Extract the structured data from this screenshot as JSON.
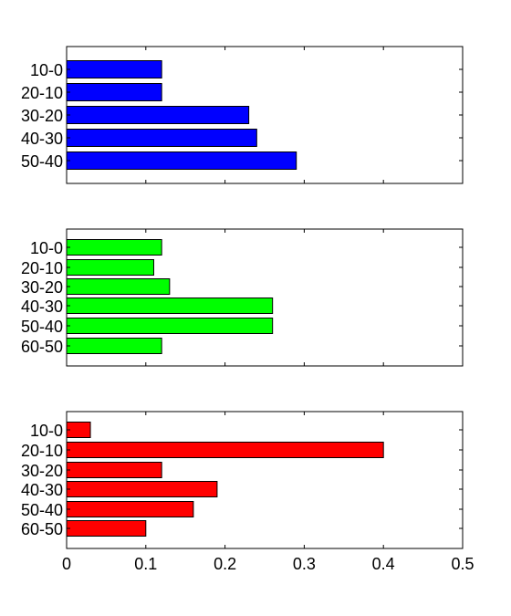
{
  "chart_data": [
    {
      "type": "bar",
      "orientation": "horizontal",
      "color": "#0000ff",
      "categories": [
        "10-0",
        "20-10",
        "30-20",
        "40-30",
        "50-40"
      ],
      "values": [
        0.12,
        0.12,
        0.23,
        0.24,
        0.29
      ],
      "xlim": [
        0,
        0.5
      ],
      "x_tick_labels_shown": false,
      "grid": false
    },
    {
      "type": "bar",
      "orientation": "horizontal",
      "color": "#00ff00",
      "categories": [
        "10-0",
        "20-10",
        "30-20",
        "40-30",
        "50-40",
        "60-50"
      ],
      "values": [
        0.12,
        0.11,
        0.13,
        0.26,
        0.26,
        0.12
      ],
      "xlim": [
        0,
        0.5
      ],
      "x_tick_labels_shown": false,
      "grid": false
    },
    {
      "type": "bar",
      "orientation": "horizontal",
      "color": "#ff0000",
      "categories": [
        "10-0",
        "20-10",
        "30-20",
        "40-30",
        "50-40",
        "60-50"
      ],
      "values": [
        0.03,
        0.4,
        0.12,
        0.19,
        0.16,
        0.1
      ],
      "xlim": [
        0,
        0.5
      ],
      "x_ticks": [
        0,
        0.1,
        0.2,
        0.3,
        0.4,
        0.5
      ],
      "x_tick_labels": [
        "0",
        "0.1",
        "0.2",
        "0.3",
        "0.4",
        "0.5"
      ],
      "x_tick_labels_shown": true,
      "grid": false
    }
  ]
}
